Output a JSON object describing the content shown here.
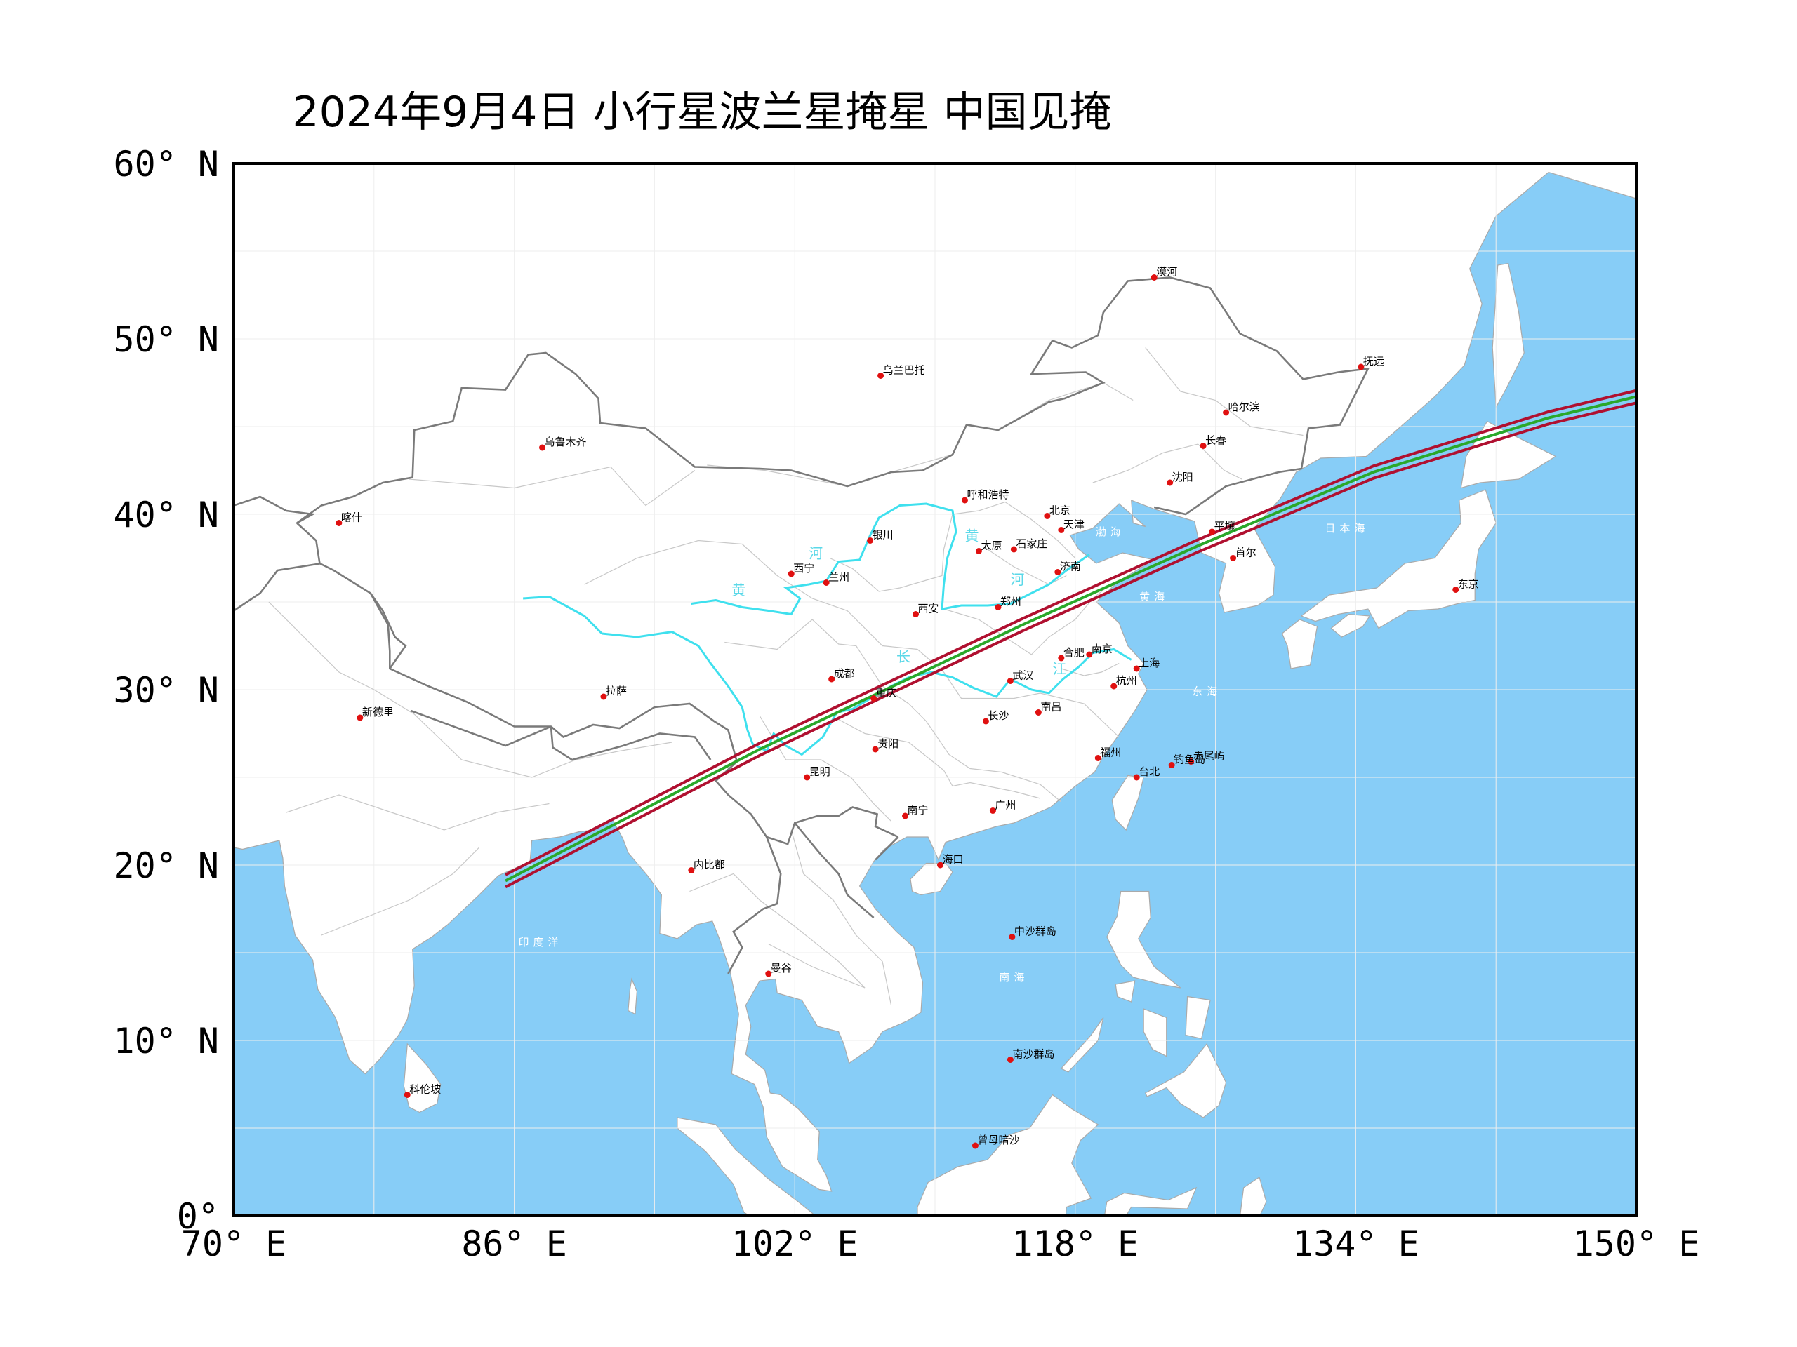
{
  "title": "2024年9月4日  小行星波兰星掩星  中国见掩",
  "axes": {
    "lat_labels": [
      {
        "text": "60° N",
        "lat": 60
      },
      {
        "text": "50° N",
        "lat": 50
      },
      {
        "text": "40° N",
        "lat": 40
      },
      {
        "text": "30° N",
        "lat": 30
      },
      {
        "text": "20° N",
        "lat": 20
      },
      {
        "text": "10° N",
        "lat": 10
      },
      {
        "text": "0°",
        "lat": 0
      }
    ],
    "lon_labels": [
      {
        "text": "70° E",
        "lon": 70
      },
      {
        "text": "86° E",
        "lon": 86
      },
      {
        "text": "102° E",
        "lon": 102
      },
      {
        "text": "118° E",
        "lon": 118
      },
      {
        "text": "134° E",
        "lon": 134
      },
      {
        "text": "150° E",
        "lon": 150
      }
    ],
    "lon_range": [
      70,
      150
    ],
    "lat_range": [
      0,
      60
    ]
  },
  "colors": {
    "ocean": "#87cdf7",
    "land": "#ffffff",
    "border": "#888888",
    "province": "#c8c8c8",
    "river": "#3fe0ee",
    "path_edge": "#b01030",
    "path_center": "#2aa82a",
    "city_dot": "#e01010"
  },
  "occultation_path": {
    "center": [
      [
        85.5,
        19.1
      ],
      [
        100,
        26.6
      ],
      [
        115,
        33.7
      ],
      [
        125,
        38.2
      ],
      [
        135,
        42.4
      ],
      [
        145,
        45.5
      ],
      [
        150,
        46.7
      ]
    ],
    "half_width_deg": 0.35
  },
  "cities": [
    {
      "name": "漠河",
      "lon": 122.5,
      "lat": 53.5
    },
    {
      "name": "乌兰巴托",
      "lon": 106.9,
      "lat": 47.9
    },
    {
      "name": "抚远",
      "lon": 134.3,
      "lat": 48.4
    },
    {
      "name": "哈尔滨",
      "lon": 126.6,
      "lat": 45.8
    },
    {
      "name": "乌鲁木齐",
      "lon": 87.6,
      "lat": 43.8
    },
    {
      "name": "长春",
      "lon": 125.3,
      "lat": 43.9
    },
    {
      "name": "沈阳",
      "lon": 123.4,
      "lat": 41.8
    },
    {
      "name": "呼和浩特",
      "lon": 111.7,
      "lat": 40.8
    },
    {
      "name": "北京",
      "lon": 116.4,
      "lat": 39.9
    },
    {
      "name": "喀什",
      "lon": 76.0,
      "lat": 39.5
    },
    {
      "name": "天津",
      "lon": 117.2,
      "lat": 39.1
    },
    {
      "name": "平壤",
      "lon": 125.8,
      "lat": 39.0
    },
    {
      "name": "银川",
      "lon": 106.3,
      "lat": 38.5
    },
    {
      "name": "太原",
      "lon": 112.5,
      "lat": 37.9
    },
    {
      "name": "石家庄",
      "lon": 114.5,
      "lat": 38.0
    },
    {
      "name": "首尔",
      "lon": 127.0,
      "lat": 37.5
    },
    {
      "name": "西宁",
      "lon": 101.8,
      "lat": 36.6
    },
    {
      "name": "济南",
      "lon": 117.0,
      "lat": 36.7
    },
    {
      "name": "兰州",
      "lon": 103.8,
      "lat": 36.1
    },
    {
      "name": "东京",
      "lon": 139.7,
      "lat": 35.7
    },
    {
      "name": "郑州",
      "lon": 113.6,
      "lat": 34.7
    },
    {
      "name": "西安",
      "lon": 108.9,
      "lat": 34.3
    },
    {
      "name": "合肥",
      "lon": 117.2,
      "lat": 31.8
    },
    {
      "name": "南京",
      "lon": 118.8,
      "lat": 32.0
    },
    {
      "name": "上海",
      "lon": 121.5,
      "lat": 31.2
    },
    {
      "name": "成都",
      "lon": 104.1,
      "lat": 30.6
    },
    {
      "name": "武汉",
      "lon": 114.3,
      "lat": 30.5
    },
    {
      "name": "杭州",
      "lon": 120.2,
      "lat": 30.2
    },
    {
      "name": "拉萨",
      "lon": 91.1,
      "lat": 29.6
    },
    {
      "name": "重庆",
      "lon": 106.5,
      "lat": 29.5
    },
    {
      "name": "新德里",
      "lon": 77.2,
      "lat": 28.4
    },
    {
      "name": "南昌",
      "lon": 115.9,
      "lat": 28.7
    },
    {
      "name": "长沙",
      "lon": 112.9,
      "lat": 28.2
    },
    {
      "name": "贵阳",
      "lon": 106.6,
      "lat": 26.6
    },
    {
      "name": "福州",
      "lon": 119.3,
      "lat": 26.1
    },
    {
      "name": "赤尾屿",
      "lon": 124.6,
      "lat": 25.9
    },
    {
      "name": "钓鱼岛",
      "lon": 123.5,
      "lat": 25.7
    },
    {
      "name": "台北",
      "lon": 121.5,
      "lat": 25.0
    },
    {
      "name": "昆明",
      "lon": 102.7,
      "lat": 25.0
    },
    {
      "name": "广州",
      "lon": 113.3,
      "lat": 23.1
    },
    {
      "name": "南宁",
      "lon": 108.3,
      "lat": 22.8
    },
    {
      "name": "海口",
      "lon": 110.3,
      "lat": 20.0
    },
    {
      "name": "内比都",
      "lon": 96.1,
      "lat": 19.7
    },
    {
      "name": "中沙群岛",
      "lon": 114.4,
      "lat": 15.9
    },
    {
      "name": "曼谷",
      "lon": 100.5,
      "lat": 13.8
    },
    {
      "name": "南沙群岛",
      "lon": 114.3,
      "lat": 8.9
    },
    {
      "name": "科伦坡",
      "lon": 79.9,
      "lat": 6.9
    },
    {
      "name": "曾母暗沙",
      "lon": 112.3,
      "lat": 4.0
    }
  ],
  "seas": [
    {
      "name": "渤海",
      "lon": 120.0,
      "lat": 38.8
    },
    {
      "name": "黄海",
      "lon": 122.5,
      "lat": 35.1
    },
    {
      "name": "日本海",
      "lon": 133.5,
      "lat": 39.0
    },
    {
      "name": "东海",
      "lon": 125.5,
      "lat": 29.7
    },
    {
      "name": "南海",
      "lon": 114.5,
      "lat": 13.4
    },
    {
      "name": "印度洋",
      "lon": 87.5,
      "lat": 15.4
    }
  ],
  "river_labels": [
    {
      "text": "黄",
      "lon": 112.1,
      "lat": 38.5
    },
    {
      "text": "河",
      "lon": 103.2,
      "lat": 37.5
    },
    {
      "text": "河",
      "lon": 114.7,
      "lat": 36.0
    },
    {
      "text": "黄",
      "lon": 98.8,
      "lat": 35.4
    },
    {
      "text": "长",
      "lon": 108.2,
      "lat": 31.6
    },
    {
      "text": "江",
      "lon": 117.1,
      "lat": 30.9
    }
  ]
}
